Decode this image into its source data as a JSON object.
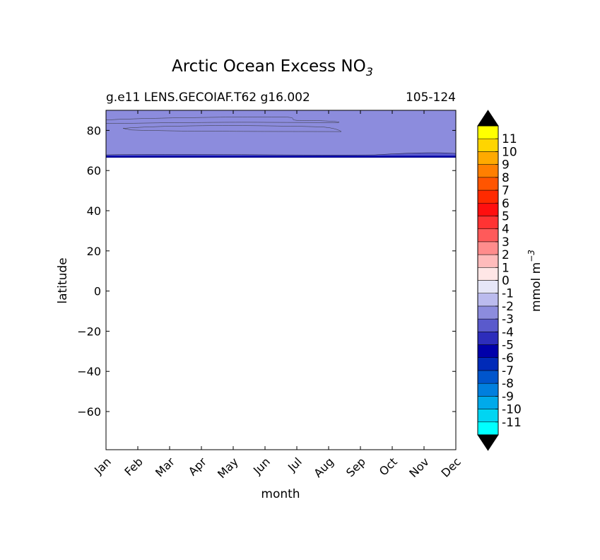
{
  "chart_data": {
    "type": "contour",
    "title": "Arctic Ocean Excess NO",
    "title_subscript": "3",
    "subtitle_left": "g.e11 LENS.GECOIAF.T62 g16.002",
    "subtitle_right": "105-124",
    "xlabel": "month",
    "ylabel": "latitude",
    "x_categories": [
      "Jan",
      "Feb",
      "Mar",
      "Apr",
      "May",
      "Jun",
      "Jul",
      "Aug",
      "Sep",
      "Oct",
      "Nov",
      "Dec"
    ],
    "y_ticks": [
      80,
      60,
      40,
      20,
      0,
      -20,
      -40,
      -60
    ],
    "y_tick_labels": [
      "80",
      "60",
      "40",
      "20",
      "0",
      "−20",
      "−40",
      "−60"
    ],
    "ylim": [
      -79,
      90
    ],
    "data_ylim": [
      66.5,
      90
    ],
    "background_level": -3,
    "regions": [
      {
        "level": -2,
        "description": "light band near 84-86N from Jan to Aug",
        "lat_top": [
          85.0,
          86.0,
          86.5,
          86.5,
          86.0,
          85.5,
          84.0,
          83.0
        ],
        "lat_bottom": [
          83.5,
          83.0,
          82.5,
          82.5,
          82.5,
          82.5,
          82.5,
          83.0
        ],
        "month_range": [
          0,
          7.5
        ]
      },
      {
        "level": -2,
        "description": "second light band near 78-81N from Feb to Aug",
        "month_range": [
          0.5,
          7.5
        ],
        "lat_center": 79.5
      }
    ],
    "bottom_band": {
      "level": -4,
      "lat_range": [
        66.5,
        68.5
      ]
    },
    "colorbar": {
      "label": "mmol m",
      "label_superscript": "−3",
      "extend": "both",
      "levels": [
        {
          "bin": [
            -12,
            -11
          ],
          "color": "#00ffff"
        },
        {
          "bin": [
            -11,
            -10
          ],
          "color": "#00d5f2"
        },
        {
          "bin": [
            -10,
            -9
          ],
          "color": "#00aaea"
        },
        {
          "bin": [
            -9,
            -8
          ],
          "color": "#007fde"
        },
        {
          "bin": [
            -8,
            -7
          ],
          "color": "#0055cc"
        },
        {
          "bin": [
            -7,
            -6
          ],
          "color": "#002ab8"
        },
        {
          "bin": [
            -6,
            -5
          ],
          "color": "#0000aa"
        },
        {
          "bin": [
            -5,
            -4
          ],
          "color": "#2d2dbb"
        },
        {
          "bin": [
            -4,
            -3
          ],
          "color": "#5a5acc"
        },
        {
          "bin": [
            -3,
            -2
          ],
          "color": "#8c8cdd"
        },
        {
          "bin": [
            -2,
            -1
          ],
          "color": "#bbbbee"
        },
        {
          "bin": [
            -1,
            0
          ],
          "color": "#e6e6f7"
        },
        {
          "bin": [
            0,
            1
          ],
          "color": "#ffe6e6"
        },
        {
          "bin": [
            1,
            2
          ],
          "color": "#ffbbbb"
        },
        {
          "bin": [
            2,
            3
          ],
          "color": "#ff8c8c"
        },
        {
          "bin": [
            3,
            4
          ],
          "color": "#ff5a5a"
        },
        {
          "bin": [
            4,
            5
          ],
          "color": "#ff3333"
        },
        {
          "bin": [
            5,
            6
          ],
          "color": "#ff0f0f"
        },
        {
          "bin": [
            6,
            7
          ],
          "color": "#ff2a00"
        },
        {
          "bin": [
            7,
            8
          ],
          "color": "#ff5500"
        },
        {
          "bin": [
            8,
            9
          ],
          "color": "#ff7f00"
        },
        {
          "bin": [
            9,
            10
          ],
          "color": "#ffaa00"
        },
        {
          "bin": [
            10,
            11
          ],
          "color": "#ffd500"
        },
        {
          "bin": [
            11,
            12
          ],
          "color": "#ffff00"
        }
      ],
      "tick_labels": [
        "-11",
        "-10",
        "-9",
        "-8",
        "-7",
        "-6",
        "-5",
        "-4",
        "-3",
        "-2",
        "-1",
        "0",
        "1",
        "2",
        "3",
        "4",
        "5",
        "6",
        "7",
        "8",
        "9",
        "10",
        "11"
      ],
      "under_color": "#000000",
      "over_color": "#000000"
    }
  }
}
